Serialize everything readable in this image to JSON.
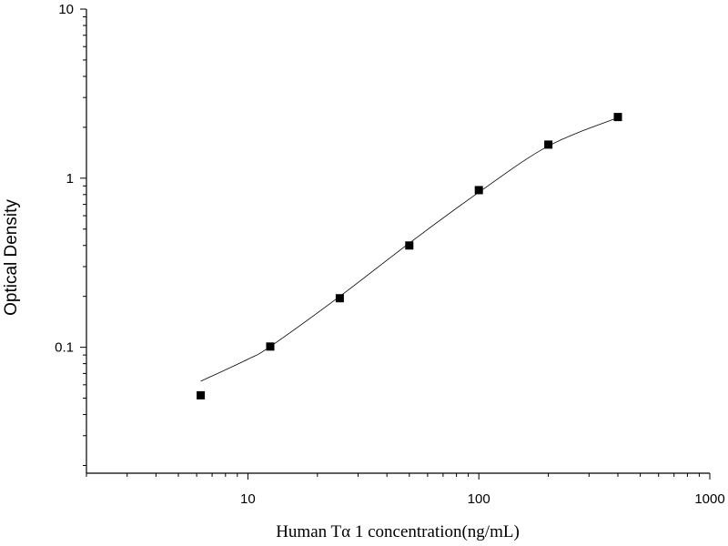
{
  "chart_data": {
    "type": "scatter",
    "xlabel": "Human Tα  1 concentration(ng/mL)",
    "ylabel": "Optical Density",
    "xscale": "log",
    "yscale": "log",
    "xlim": [
      2,
      1000
    ],
    "ylim": [
      0.018,
      10
    ],
    "x_ticks": [
      10,
      100,
      1000
    ],
    "x_tick_labels": [
      "10",
      "100",
      "1000"
    ],
    "y_ticks": [
      0.1,
      1,
      10
    ],
    "y_tick_labels": [
      "0.1",
      "1",
      "10"
    ],
    "grid": false,
    "series": [
      {
        "x": [
          6.25,
          12.5,
          25,
          50,
          100,
          200,
          400
        ],
        "y": [
          0.052,
          0.101,
          0.195,
          0.4,
          0.85,
          1.58,
          2.3
        ]
      }
    ],
    "fit_curve": {
      "x": [
        6.25,
        10,
        12.5,
        25,
        50,
        100,
        200,
        400
      ],
      "y": [
        0.063,
        0.085,
        0.101,
        0.2,
        0.413,
        0.825,
        1.55,
        2.28
      ]
    },
    "colors": {
      "marker": "#000000",
      "line": "#000000",
      "axis": "#000000"
    }
  }
}
